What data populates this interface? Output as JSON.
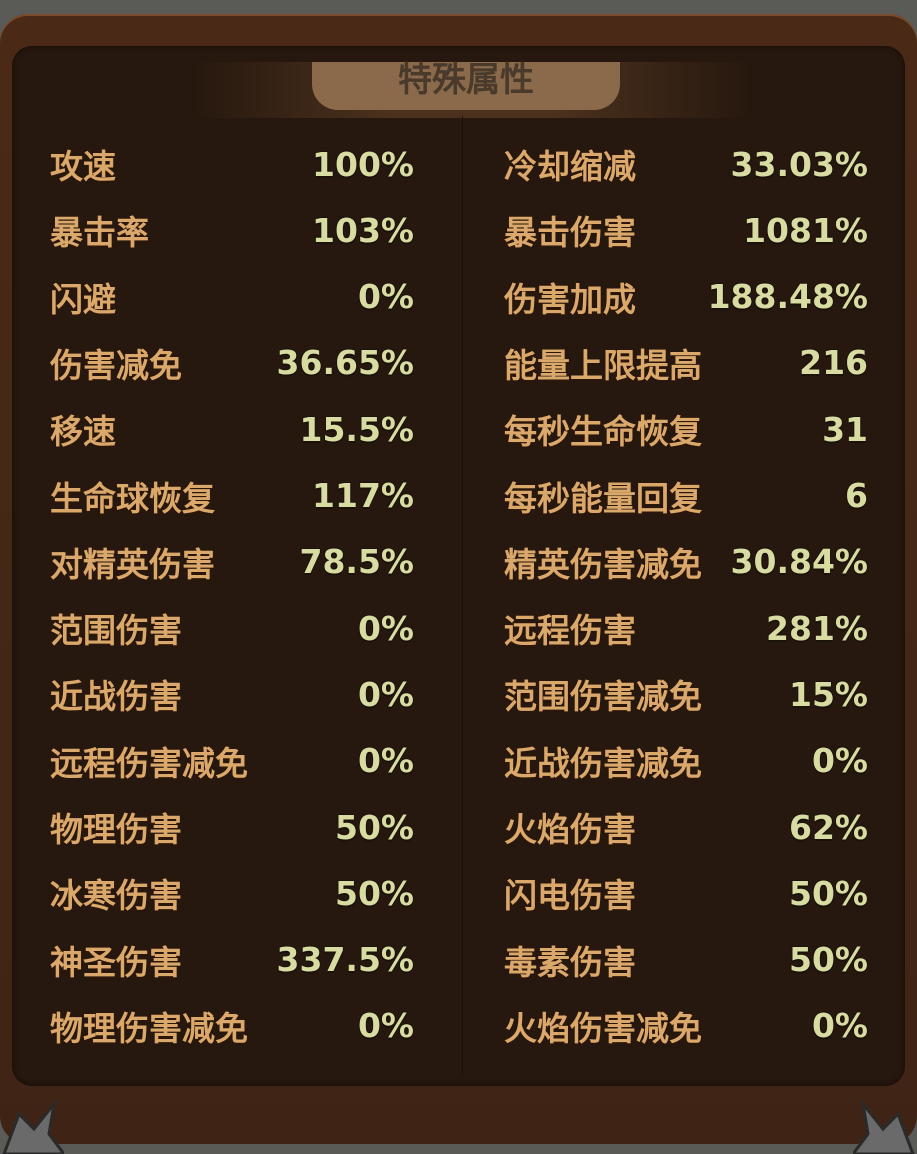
{
  "title": "特殊属性",
  "left": [
    {
      "label": "攻速",
      "value": "100%"
    },
    {
      "label": "暴击率",
      "value": "103%"
    },
    {
      "label": "闪避",
      "value": "0%"
    },
    {
      "label": "伤害减免",
      "value": "36.65%"
    },
    {
      "label": "移速",
      "value": "15.5%"
    },
    {
      "label": "生命球恢复",
      "value": "117%"
    },
    {
      "label": "对精英伤害",
      "value": "78.5%"
    },
    {
      "label": "范围伤害",
      "value": "0%"
    },
    {
      "label": "近战伤害",
      "value": "0%"
    },
    {
      "label": "远程伤害减免",
      "value": "0%"
    },
    {
      "label": "物理伤害",
      "value": "50%"
    },
    {
      "label": "冰寒伤害",
      "value": "50%"
    },
    {
      "label": "神圣伤害",
      "value": "337.5%"
    },
    {
      "label": "物理伤害减免",
      "value": "0%"
    }
  ],
  "right": [
    {
      "label": "冷却缩减",
      "value": "33.03%"
    },
    {
      "label": "暴击伤害",
      "value": "1081%"
    },
    {
      "label": "伤害加成",
      "value": "188.48%"
    },
    {
      "label": "能量上限提高",
      "value": "216"
    },
    {
      "label": "每秒生命恢复",
      "value": "31"
    },
    {
      "label": "每秒能量回复",
      "value": "6"
    },
    {
      "label": "精英伤害减免",
      "value": "30.84%"
    },
    {
      "label": "远程伤害",
      "value": "281%"
    },
    {
      "label": "范围伤害减免",
      "value": "15%"
    },
    {
      "label": "近战伤害减免",
      "value": "0%"
    },
    {
      "label": "火焰伤害",
      "value": "62%"
    },
    {
      "label": "闪电伤害",
      "value": "50%"
    },
    {
      "label": "毒素伤害",
      "value": "50%"
    },
    {
      "label": "火焰伤害减免",
      "value": "0%"
    }
  ]
}
